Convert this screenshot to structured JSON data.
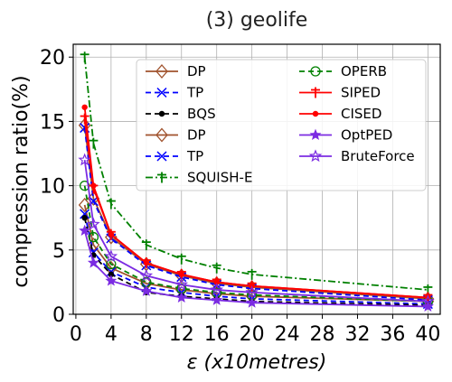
{
  "chart_data": {
    "type": "line",
    "title": "(3) geolife",
    "xlabel": "ε (x10metres)",
    "ylabel": "compression ratio(%)",
    "xlim": [
      -0.3,
      41.4
    ],
    "ylim": [
      0,
      21
    ],
    "xticks": [
      0,
      4,
      8,
      12,
      16,
      20,
      24,
      28,
      32,
      36,
      40
    ],
    "yticks": [
      0,
      5,
      10,
      15,
      20
    ],
    "grid": true,
    "legend": {
      "position": "top-right",
      "columns": 2
    },
    "x": [
      1,
      2,
      4,
      8,
      12,
      16,
      20,
      40
    ],
    "series": [
      {
        "name": "DP",
        "color": "#a0522d",
        "dash": "solid",
        "marker": "diamond-open",
        "values": [
          8.5,
          5.4,
          3.6,
          2.4,
          1.9,
          1.6,
          1.4,
          1.0
        ]
      },
      {
        "name": "TP",
        "color": "#0000ff",
        "dash": "dashed",
        "marker": "x",
        "values": [
          7.8,
          4.8,
          3.3,
          2.1,
          1.7,
          1.4,
          1.2,
          0.8
        ]
      },
      {
        "name": "BQS",
        "color": "#000000",
        "dash": "dashed",
        "marker": "dot",
        "values": [
          7.5,
          4.6,
          3.1,
          1.7,
          1.4,
          1.2,
          1.0,
          0.7
        ]
      },
      {
        "name": "DP",
        "color": "#a0522d",
        "dash": "solid",
        "marker": "diamond-open",
        "values": [
          14.7,
          9.0,
          6.0,
          3.9,
          3.0,
          2.4,
          2.1,
          1.2
        ]
      },
      {
        "name": "TP",
        "color": "#0000ff",
        "dash": "dashed",
        "marker": "x",
        "values": [
          14.5,
          8.8,
          5.9,
          3.8,
          2.9,
          2.3,
          2.0,
          1.1
        ]
      },
      {
        "name": "SQUISH-E",
        "color": "#008000",
        "dash": "dashdot",
        "marker": "cross",
        "values": [
          20.0,
          13.3,
          8.6,
          5.4,
          4.3,
          3.6,
          3.1,
          1.9
        ]
      },
      {
        "name": "OPERB",
        "color": "#008000",
        "dash": "dashed",
        "marker": "circle-open",
        "values": [
          10.0,
          6.0,
          3.9,
          2.5,
          2.0,
          1.7,
          1.5,
          1.0
        ]
      },
      {
        "name": "SIPED",
        "color": "#ff0000",
        "dash": "solid",
        "marker": "cross",
        "values": [
          15.2,
          9.8,
          6.2,
          4.0,
          3.1,
          2.5,
          2.2,
          1.3
        ]
      },
      {
        "name": "CISED",
        "color": "#ff0000",
        "dash": "solid",
        "marker": "dot",
        "values": [
          16.1,
          10.0,
          6.2,
          4.0,
          3.1,
          2.5,
          2.2,
          1.3
        ]
      },
      {
        "name": "OptPED",
        "color": "#7b2be2",
        "dash": "solid",
        "marker": "star",
        "values": [
          6.5,
          4.0,
          2.6,
          1.8,
          1.3,
          1.1,
          0.9,
          0.6
        ]
      },
      {
        "name": "BruteForce",
        "color": "#7b2be2",
        "dash": "solid",
        "marker": "star-open",
        "values": [
          12.0,
          7.0,
          4.5,
          3.0,
          2.3,
          1.9,
          1.7,
          1.0
        ]
      }
    ]
  }
}
